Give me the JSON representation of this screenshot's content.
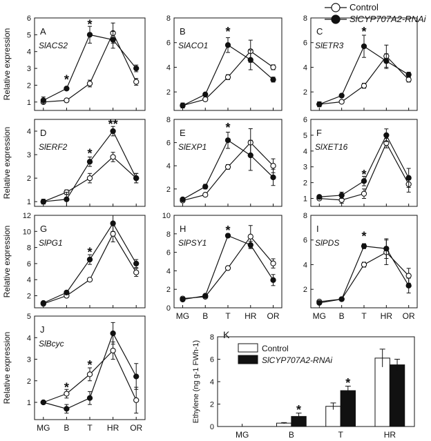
{
  "legend": {
    "items": [
      {
        "label": "Control",
        "marker": "open-circle"
      },
      {
        "label": "SlCYP707A2-RNAi",
        "marker": "filled-circle"
      }
    ]
  },
  "colors": {
    "axis": "#111111",
    "open_fill": "#ffffff",
    "filled": "#111111"
  },
  "chart_data": [
    {
      "panel": "A",
      "gene": "SlACS2",
      "type": "line",
      "x": [
        "MG",
        "B",
        "T",
        "HR",
        "OR"
      ],
      "ylabel": "Relative expression",
      "ylim": [
        0.5,
        6
      ],
      "yticks": [
        1,
        2,
        3,
        4,
        5,
        6
      ],
      "series": [
        {
          "name": "Control",
          "values": [
            1.0,
            1.1,
            2.1,
            5.1,
            2.2
          ],
          "err": [
            0.1,
            0.1,
            0.2,
            0.6,
            0.2
          ]
        },
        {
          "name": "SlCYP707A2-RNAi",
          "values": [
            1.1,
            1.8,
            5.0,
            4.7,
            3.0
          ],
          "err": [
            0.2,
            0.1,
            0.5,
            0.5,
            0.2
          ]
        }
      ],
      "sig": [
        {
          "x": "B",
          "y": 2.4,
          "mark": "*"
        },
        {
          "x": "T",
          "y": 5.7,
          "mark": "*"
        }
      ]
    },
    {
      "panel": "B",
      "gene": "SlACO1",
      "type": "line",
      "x": [
        "MG",
        "B",
        "T",
        "HR",
        "OR"
      ],
      "ylabel": "",
      "ylim": [
        0.5,
        8
      ],
      "yticks": [
        2,
        4,
        6,
        8
      ],
      "series": [
        {
          "name": "Control",
          "values": [
            0.9,
            1.4,
            3.2,
            5.3,
            4.0
          ],
          "err": [
            0.2,
            0.1,
            0.2,
            0.9,
            0.2
          ]
        },
        {
          "name": "SlCYP707A2-RNAi",
          "values": [
            0.9,
            1.8,
            5.8,
            4.6,
            3.0
          ],
          "err": [
            0.2,
            0.1,
            0.6,
            0.8,
            0.2
          ]
        }
      ],
      "sig": [
        {
          "x": "T",
          "y": 7.0,
          "mark": "*"
        }
      ]
    },
    {
      "panel": "C",
      "gene": "SlETR3",
      "type": "line",
      "x": [
        "MG",
        "B",
        "T",
        "HR",
        "OR"
      ],
      "ylabel": "",
      "ylim": [
        0.5,
        8
      ],
      "yticks": [
        2,
        4,
        6,
        8
      ],
      "series": [
        {
          "name": "Control",
          "values": [
            1.0,
            1.2,
            2.5,
            4.9,
            3.0
          ],
          "err": [
            0.2,
            0.1,
            0.2,
            0.9,
            0.2
          ]
        },
        {
          "name": "SlCYP707A2-RNAi",
          "values": [
            1.0,
            1.7,
            5.7,
            4.5,
            3.4
          ],
          "err": [
            0.2,
            0.1,
            0.9,
            0.6,
            0.2
          ]
        }
      ],
      "sig": [
        {
          "x": "T",
          "y": 7.0,
          "mark": "*"
        }
      ]
    },
    {
      "panel": "D",
      "gene": "SlERF2",
      "type": "line",
      "x": [
        "MG",
        "B",
        "T",
        "HR",
        "OR"
      ],
      "ylabel": "Relative expression",
      "ylim": [
        0.8,
        4.5
      ],
      "yticks": [
        1,
        2,
        3,
        4
      ],
      "series": [
        {
          "name": "Control",
          "values": [
            1.0,
            1.4,
            2.0,
            2.9,
            2.0
          ],
          "err": [
            0.1,
            0.1,
            0.2,
            0.2,
            0.2
          ]
        },
        {
          "name": "SlCYP707A2-RNAi",
          "values": [
            1.0,
            1.1,
            2.7,
            4.0,
            2.0
          ],
          "err": [
            0.1,
            0.3,
            0.2,
            0.2,
            0.2
          ]
        }
      ],
      "sig": [
        {
          "x": "T",
          "y": 3.1,
          "mark": "*"
        },
        {
          "x": "HR",
          "y": 4.35,
          "mark": "**"
        }
      ]
    },
    {
      "panel": "E",
      "gene": "SlEXP1",
      "type": "line",
      "x": [
        "MG",
        "B",
        "T",
        "HR",
        "OR"
      ],
      "ylabel": "",
      "ylim": [
        0.5,
        8
      ],
      "yticks": [
        2,
        4,
        6,
        8
      ],
      "series": [
        {
          "name": "Control",
          "values": [
            1.0,
            1.5,
            3.9,
            6.0,
            4.0
          ],
          "err": [
            0.1,
            0.1,
            0.2,
            1.2,
            0.6
          ]
        },
        {
          "name": "SlCYP707A2-RNAi",
          "values": [
            1.1,
            2.2,
            6.2,
            4.9,
            3.0
          ],
          "err": [
            0.1,
            0.2,
            0.7,
            1.3,
            0.7
          ]
        }
      ],
      "sig": [
        {
          "x": "T",
          "y": 7.4,
          "mark": "*"
        }
      ]
    },
    {
      "panel": "F",
      "gene": "SlXET16",
      "type": "line",
      "x": [
        "MG",
        "B",
        "T",
        "HR",
        "OR"
      ],
      "ylabel": "",
      "ylim": [
        0.5,
        6
      ],
      "yticks": [
        1,
        2,
        3,
        4,
        5,
        6
      ],
      "series": [
        {
          "name": "Control",
          "values": [
            1.0,
            0.9,
            1.3,
            4.5,
            1.9
          ],
          "err": [
            0.1,
            0.2,
            0.3,
            0.3,
            0.5
          ]
        },
        {
          "name": "SlCYP707A2-RNAi",
          "values": [
            1.1,
            1.2,
            2.1,
            5.0,
            2.3
          ],
          "err": [
            0.1,
            0.2,
            0.3,
            0.4,
            0.6
          ]
        }
      ],
      "sig": [
        {
          "x": "T",
          "y": 2.6,
          "mark": "*"
        }
      ]
    },
    {
      "panel": "G",
      "gene": "SlPG1",
      "type": "line",
      "x": [
        "MG",
        "B",
        "T",
        "HR",
        "OR"
      ],
      "ylabel": "Relative expression",
      "ylim": [
        0.5,
        12
      ],
      "yticks": [
        2,
        4,
        6,
        8,
        10,
        12
      ],
      "series": [
        {
          "name": "Control",
          "values": [
            1.0,
            2.0,
            4.0,
            9.7,
            4.9
          ],
          "err": [
            0.1,
            0.1,
            0.2,
            1.0,
            0.5
          ]
        },
        {
          "name": "SlCYP707A2-RNAi",
          "values": [
            1.1,
            2.4,
            6.5,
            11.0,
            6.0
          ],
          "err": [
            0.1,
            0.1,
            0.6,
            1.0,
            0.5
          ]
        }
      ],
      "sig": [
        {
          "x": "T",
          "y": 7.6,
          "mark": "*"
        }
      ]
    },
    {
      "panel": "H",
      "gene": "SlPSY1",
      "type": "line",
      "x": [
        "MG",
        "B",
        "T",
        "HR",
        "OR"
      ],
      "ylabel": "",
      "ylim": [
        0,
        10
      ],
      "yticks": [
        0,
        2,
        4,
        6,
        8,
        10
      ],
      "series": [
        {
          "name": "Control",
          "values": [
            1.0,
            1.2,
            4.3,
            7.7,
            4.8
          ],
          "err": [
            0.1,
            0.1,
            0.2,
            1.2,
            0.5
          ]
        },
        {
          "name": "SlCYP707A2-RNAi",
          "values": [
            0.9,
            1.3,
            7.8,
            6.8,
            3.0
          ],
          "err": [
            0.1,
            0.1,
            0.2,
            0.4,
            0.6
          ]
        }
      ],
      "sig": [
        {
          "x": "T",
          "y": 8.5,
          "mark": "*"
        }
      ]
    },
    {
      "panel": "I",
      "gene": "SlPDS",
      "type": "line",
      "x": [
        "MG",
        "B",
        "T",
        "HR",
        "OR"
      ],
      "ylabel": "",
      "ylim": [
        0.5,
        8
      ],
      "yticks": [
        2,
        4,
        6,
        8
      ],
      "series": [
        {
          "name": "Control",
          "values": [
            1.0,
            1.2,
            4.0,
            5.0,
            3.1
          ],
          "err": [
            0.1,
            0.1,
            0.2,
            1.0,
            0.6
          ]
        },
        {
          "name": "SlCYP707A2-RNAi",
          "values": [
            0.9,
            1.2,
            5.5,
            5.3,
            2.3
          ],
          "err": [
            0.1,
            0.1,
            0.2,
            0.8,
            0.6
          ]
        }
      ],
      "sig": [
        {
          "x": "T",
          "y": 6.4,
          "mark": "*"
        }
      ]
    },
    {
      "panel": "J",
      "gene": "SlBcyc",
      "type": "line",
      "x": [
        "MG",
        "B",
        "T",
        "HR",
        "OR"
      ],
      "xticklabels": [
        "MG",
        "B",
        "T",
        "HR",
        "OR"
      ],
      "ylabel": "Relative expression",
      "ylim": [
        0.2,
        5
      ],
      "yticks": [
        1,
        2,
        3,
        4,
        5
      ],
      "series": [
        {
          "name": "Control",
          "values": [
            1.0,
            1.4,
            2.3,
            3.4,
            1.1
          ],
          "err": [
            0.05,
            0.2,
            0.3,
            0.4,
            0.6
          ]
        },
        {
          "name": "SlCYP707A2-RNAi",
          "values": [
            1.0,
            0.7,
            1.2,
            4.2,
            2.2
          ],
          "err": [
            0.05,
            0.2,
            0.3,
            0.5,
            0.6
          ]
        }
      ],
      "sig": [
        {
          "x": "B",
          "y": 1.75,
          "mark": "*"
        },
        {
          "x": "T",
          "y": 2.8,
          "mark": "*"
        }
      ]
    },
    {
      "panel": "K",
      "type": "bar",
      "categories": [
        "MG",
        "B",
        "T",
        "HR"
      ],
      "ylabel": "Ethylene (ng g-1 FWh-1)",
      "ylim": [
        0,
        8
      ],
      "yticks": [
        0,
        2,
        4,
        6,
        8
      ],
      "legend": [
        "Control",
        "SlCYP707A2-RNAi"
      ],
      "series": [
        {
          "name": "Control",
          "values": [
            0.0,
            0.3,
            1.8,
            6.1
          ],
          "err": [
            0,
            0.05,
            0.3,
            0.8
          ]
        },
        {
          "name": "SlCYP707A2-RNAi",
          "values": [
            0.0,
            0.9,
            3.2,
            5.5
          ],
          "err": [
            0,
            0.3,
            0.4,
            0.5
          ]
        }
      ],
      "sig": [
        {
          "x": "B",
          "y": 1.6,
          "mark": "*"
        },
        {
          "x": "T",
          "y": 4.0,
          "mark": "*"
        }
      ]
    }
  ],
  "xaxis_labels": [
    "MG",
    "B",
    "T",
    "HR",
    "OR"
  ]
}
